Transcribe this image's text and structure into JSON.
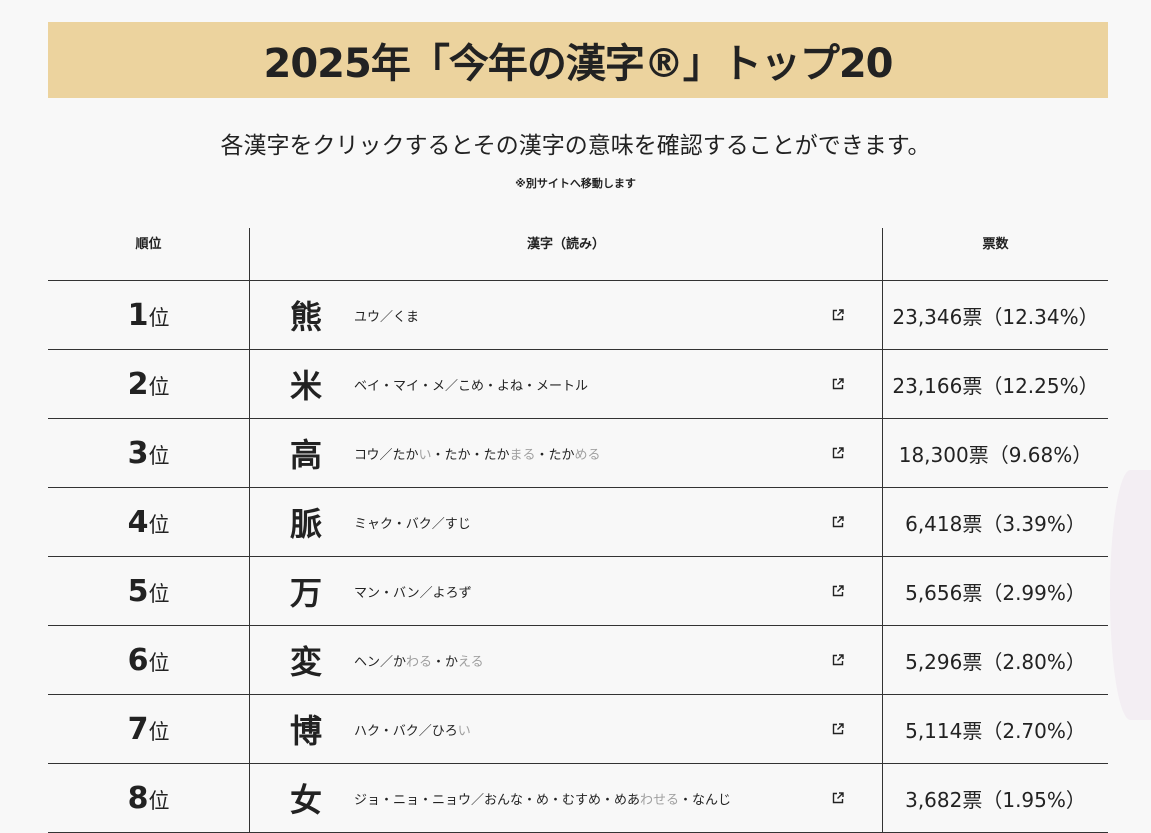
{
  "header": {
    "title": "2025年「今年の漢字®」トップ20"
  },
  "intro": {
    "lead": "各漢字をクリックするとその漢字の意味を確認することができます。",
    "note": "※別サイトへ移動します"
  },
  "table": {
    "columns": [
      "順位",
      "漢字（読み）",
      "票数"
    ],
    "rank_suffix": "位",
    "rows": [
      {
        "rank": "1",
        "kanji": "熊",
        "reading": [
          [
            "ユウ／くま",
            false
          ]
        ],
        "votes": "23,346票（12.34%）"
      },
      {
        "rank": "2",
        "kanji": "米",
        "reading": [
          [
            "ベイ・マイ・メ／こめ・よね・メートル",
            false
          ]
        ],
        "votes": "23,166票（12.25%）"
      },
      {
        "rank": "3",
        "kanji": "高",
        "reading": [
          [
            "コウ／たか",
            false
          ],
          [
            "い",
            true
          ],
          [
            "・たか・たか",
            false
          ],
          [
            "まる",
            true
          ],
          [
            "・たか",
            false
          ],
          [
            "める",
            true
          ]
        ],
        "votes": "18,300票（9.68%）"
      },
      {
        "rank": "4",
        "kanji": "脈",
        "reading": [
          [
            "ミャク・バク／すじ",
            false
          ]
        ],
        "votes": "6,418票（3.39%）"
      },
      {
        "rank": "5",
        "kanji": "万",
        "reading": [
          [
            "マン・バン／よろず",
            false
          ]
        ],
        "votes": "5,656票（2.99%）"
      },
      {
        "rank": "6",
        "kanji": "変",
        "reading": [
          [
            "ヘン／か",
            false
          ],
          [
            "わる",
            true
          ],
          [
            "・か",
            false
          ],
          [
            "える",
            true
          ]
        ],
        "votes": "5,296票（2.80%）"
      },
      {
        "rank": "7",
        "kanji": "博",
        "reading": [
          [
            "ハク・バク／ひろ",
            false
          ],
          [
            "い",
            true
          ]
        ],
        "votes": "5,114票（2.70%）"
      },
      {
        "rank": "8",
        "kanji": "女",
        "reading": [
          [
            "ジョ・ニョ・ニョウ／おんな・め・むすめ・めあ",
            false
          ],
          [
            "わせる",
            true
          ],
          [
            "・なんじ",
            false
          ]
        ],
        "votes": "3,682票（1.95%）"
      }
    ]
  },
  "colors": {
    "banner": "#ecd39e",
    "okurigana": "#a0a0a0",
    "background": "#f8f8f8"
  }
}
